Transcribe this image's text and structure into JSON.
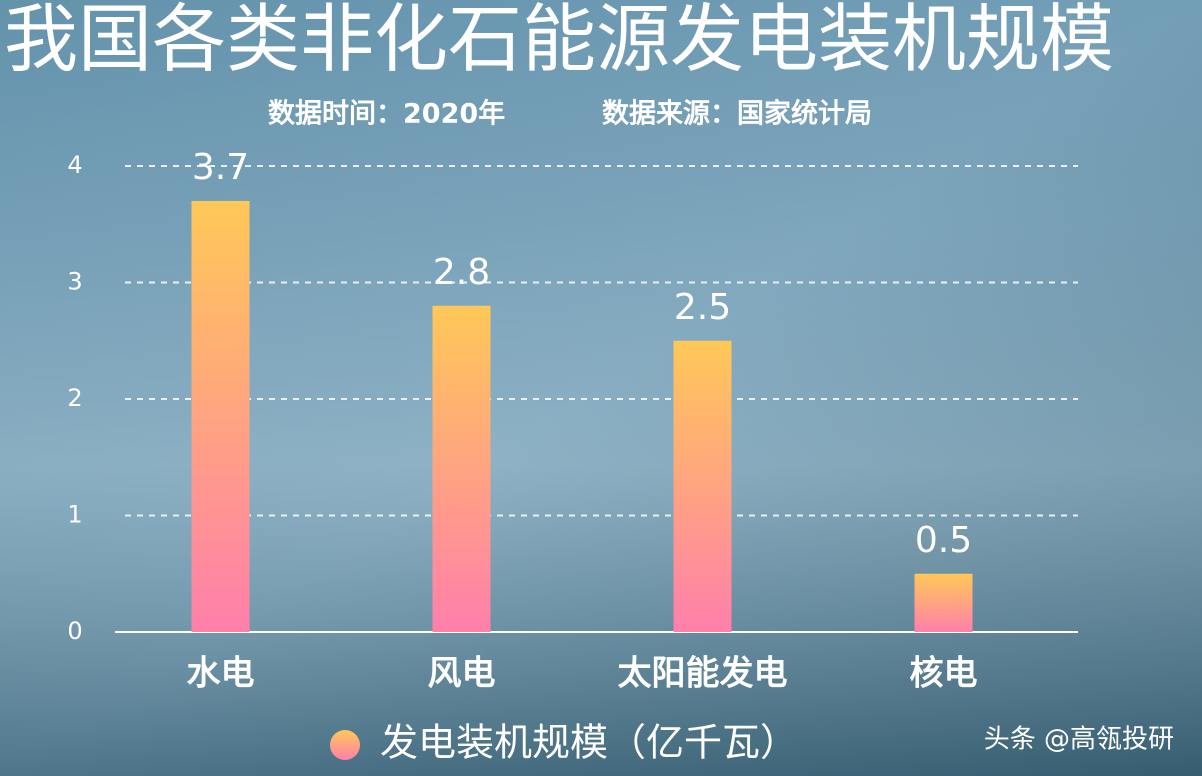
{
  "chart_data": {
    "type": "bar",
    "title": "我国各类非化石能源发电装机规模",
    "subtitle": [
      "数据时间：2020年",
      "数据来源：国家统计局"
    ],
    "categories": [
      "水电",
      "风电",
      "太阳能发电",
      "核电"
    ],
    "series": [
      {
        "name": "发电装机规模（亿千瓦）",
        "color": [
          "#ffc857",
          "#ff7fab"
        ],
        "values": [
          3.7,
          2.8,
          2.5,
          0.5
        ]
      }
    ],
    "ylim": [
      0,
      4
    ],
    "yticks": [
      0,
      1,
      2,
      3,
      4
    ],
    "grid": true,
    "watermark": "头条 @高瓴投研"
  }
}
